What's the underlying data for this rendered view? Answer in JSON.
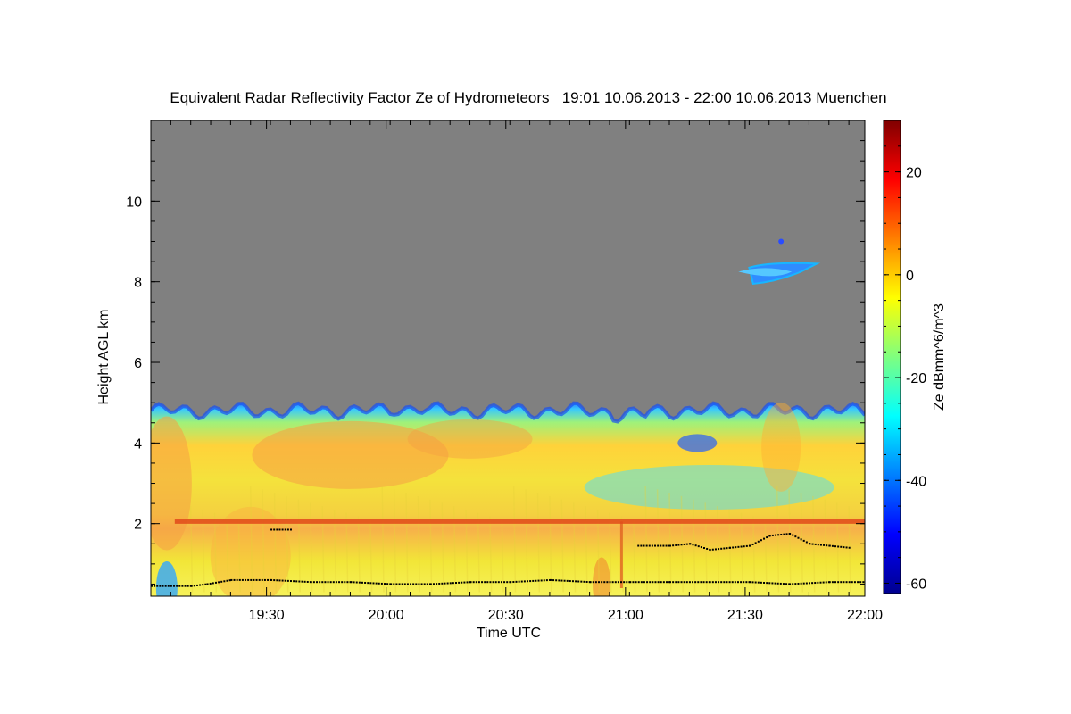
{
  "chart_data": {
    "type": "heatmap",
    "title": "Equivalent Radar Reflectivity Factor Ze of Hydrometeors   19:01 10.06.2013 - 22:00 10.06.2013 Muenchen",
    "xlabel": "Time UTC",
    "ylabel": "Height AGL km",
    "colorbar_label": "Ze dBmm^6/m^3",
    "x_range_utc": [
      "19:01",
      "22:00"
    ],
    "x_range_minutes": [
      0,
      179
    ],
    "x_ticks": [
      {
        "label": "19:30",
        "minutes": 29
      },
      {
        "label": "20:00",
        "minutes": 59
      },
      {
        "label": "20:30",
        "minutes": 89
      },
      {
        "label": "21:00",
        "minutes": 119
      },
      {
        "label": "21:30",
        "minutes": 149
      },
      {
        "label": "22:00",
        "minutes": 179
      }
    ],
    "ylim": [
      0.2,
      12.0
    ],
    "y_ticks": [
      2,
      4,
      6,
      8,
      10
    ],
    "y_minor_step": 0.5,
    "colorbar_range": [
      -62,
      30
    ],
    "colorbar_ticks": [
      -60,
      -40,
      -20,
      0,
      20
    ],
    "colormap": "jet",
    "no_data_color": "#808080",
    "features": {
      "echo_top_km": 4.8,
      "bright_band_km": 2.05,
      "upper_cloud": {
        "time_minutes": [
          150,
          167
        ],
        "height_km": [
          8.0,
          8.45
        ],
        "ze_dbz": -35
      },
      "isolated_echo": {
        "time_minutes": 158,
        "height_km": 9.0,
        "ze_dbz": -40
      }
    },
    "cloud_base_series": [
      {
        "name": "lower_layer",
        "points": [
          [
            0,
            0.45
          ],
          [
            10,
            0.45
          ],
          [
            14,
            0.5
          ],
          [
            20,
            0.6
          ],
          [
            30,
            0.6
          ],
          [
            40,
            0.55
          ],
          [
            50,
            0.55
          ],
          [
            60,
            0.5
          ],
          [
            70,
            0.5
          ],
          [
            80,
            0.55
          ],
          [
            90,
            0.55
          ],
          [
            100,
            0.6
          ],
          [
            110,
            0.55
          ],
          [
            120,
            0.55
          ],
          [
            130,
            0.55
          ],
          [
            140,
            0.55
          ],
          [
            150,
            0.55
          ],
          [
            160,
            0.5
          ],
          [
            170,
            0.55
          ],
          [
            179,
            0.55
          ]
        ]
      },
      {
        "name": "mid_layer_a",
        "points": [
          [
            30,
            1.85
          ],
          [
            35,
            1.85
          ]
        ]
      },
      {
        "name": "mid_layer_b",
        "points": [
          [
            122,
            1.45
          ],
          [
            130,
            1.45
          ],
          [
            135,
            1.5
          ],
          [
            140,
            1.35
          ],
          [
            145,
            1.4
          ],
          [
            150,
            1.45
          ],
          [
            155,
            1.7
          ],
          [
            160,
            1.75
          ],
          [
            165,
            1.5
          ],
          [
            170,
            1.45
          ],
          [
            175,
            1.4
          ]
        ]
      }
    ]
  }
}
